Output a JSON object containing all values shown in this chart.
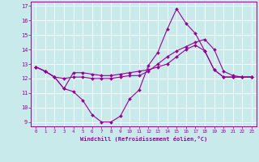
{
  "xlabel": "Windchill (Refroidissement éolien,°C)",
  "background_color": "#c8eaea",
  "grid_color": "#ffffff",
  "line_color": "#990099",
  "xlim": [
    -0.5,
    23.5
  ],
  "ylim": [
    8.7,
    17.3
  ],
  "xticks": [
    0,
    1,
    2,
    3,
    4,
    5,
    6,
    7,
    8,
    9,
    10,
    11,
    12,
    13,
    14,
    15,
    16,
    17,
    18,
    19,
    20,
    21,
    22,
    23
  ],
  "yticks": [
    9,
    10,
    11,
    12,
    13,
    14,
    15,
    16,
    17
  ],
  "series": [
    [
      12.8,
      12.5,
      12.1,
      11.3,
      11.1,
      10.5,
      9.5,
      9.0,
      9.0,
      9.4,
      10.6,
      11.2,
      12.9,
      13.8,
      15.4,
      16.8,
      15.8,
      15.1,
      13.9,
      12.6,
      12.1,
      12.1,
      12.1,
      12.1
    ],
    [
      12.8,
      12.5,
      12.1,
      12.0,
      12.1,
      12.1,
      12.0,
      12.0,
      12.0,
      12.1,
      12.2,
      12.2,
      12.5,
      13.0,
      13.5,
      13.9,
      14.2,
      14.5,
      14.7,
      14.0,
      12.5,
      12.2,
      12.1,
      12.1
    ],
    [
      12.8,
      12.5,
      12.1,
      11.3,
      12.4,
      12.4,
      12.3,
      12.2,
      12.2,
      12.3,
      12.4,
      12.5,
      12.6,
      12.8,
      13.0,
      13.5,
      14.0,
      14.3,
      13.9,
      12.6,
      12.1,
      12.1,
      12.1,
      12.1
    ]
  ]
}
